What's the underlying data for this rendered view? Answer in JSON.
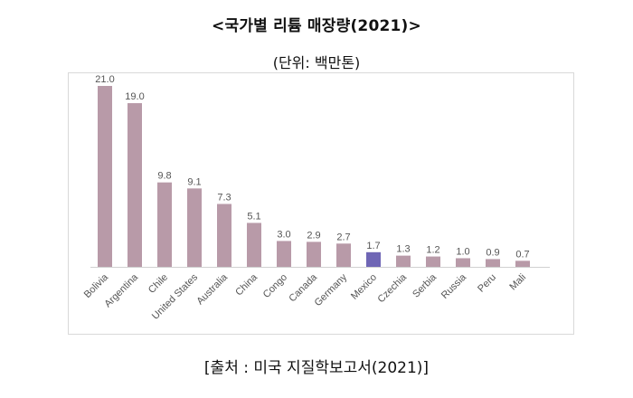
{
  "title": "<국가별 리튬 매장량(2021)>",
  "subtitle": "(단위: 백만톤)",
  "source": "[출처 : 미국 지질학보고서(2021)]",
  "colors": {
    "bar": "#b89aa8",
    "highlight": "#6f66b5",
    "axis": "#d0d0d0",
    "label": "#555555"
  },
  "chart_data": {
    "type": "bar",
    "title": "<국가별 리튬 매장량(2021)>",
    "subtitle": "(단위: 백만톤)",
    "categories": [
      "Bolivia",
      "Argentina",
      "Chile",
      "United States",
      "Australia",
      "China",
      "Congo",
      "Canada",
      "Germany",
      "Mexico",
      "Czechia",
      "Serbia",
      "Russia",
      "Peru",
      "Mali"
    ],
    "values": [
      21.0,
      19.0,
      9.8,
      9.1,
      7.3,
      5.1,
      3.0,
      2.9,
      2.7,
      1.7,
      1.3,
      1.2,
      1.0,
      0.9,
      0.7
    ],
    "data_labels": [
      "21.0",
      "19.0",
      "9.8",
      "9.1",
      "7.3",
      "5.1",
      "3.0",
      "2.9",
      "2.7",
      "1.7",
      "1.3",
      "1.2",
      "1.0",
      "0.9",
      "0.7"
    ],
    "highlight_category": "Mexico",
    "ylim": [
      0,
      21.0
    ],
    "grid": false,
    "legend": "none",
    "xlabel": "",
    "ylabel": ""
  }
}
